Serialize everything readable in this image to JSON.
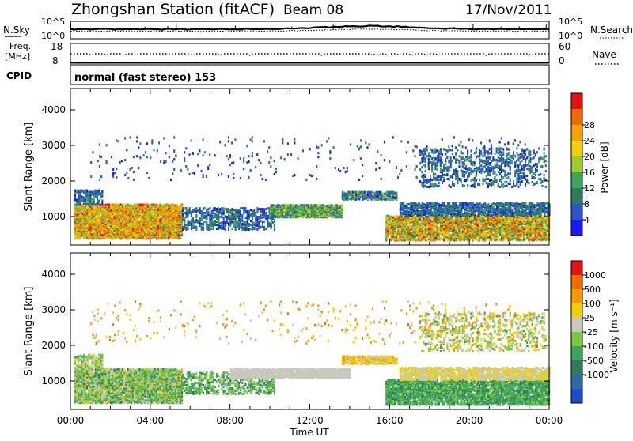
{
  "header": {
    "station": "Zhongshan Station (fitACF)",
    "beam": "Beam 08",
    "date": "17/Nov/2011"
  },
  "top_panels": {
    "sky_label": "N.Sky",
    "search_label": "N.Search",
    "noise_ticks_left": [
      "10^5",
      "10^0"
    ],
    "noise_ticks_right": [
      "10^5",
      "10^0"
    ],
    "freq_label_line1": "Freq.",
    "freq_label_line2": "[MHz]",
    "freq_ticks": [
      "18",
      "8"
    ],
    "nave_label": "Nave",
    "nave_ticks": [
      "60",
      "0"
    ],
    "cpid_label": "CPID",
    "cpid_text": "normal (fast stereo) 153"
  },
  "chart_data": [
    {
      "type": "heatmap",
      "name": "Power",
      "xlabel": "Time UT",
      "ylabel": "Slant Range [km]",
      "x_ticks": [
        "00:00",
        "04:00",
        "08:00",
        "12:00",
        "16:00",
        "20:00",
        "00:00"
      ],
      "y_ticks": [
        1000,
        2000,
        3000,
        4000
      ],
      "ylim": [
        200,
        4600
      ],
      "colorbar": {
        "label": "Power [dB]",
        "ticks": [
          "4",
          "8",
          "12",
          "16",
          "20",
          "24",
          "28"
        ],
        "colors": [
          "#1a1aff",
          "#2a56c8",
          "#2e7d5a",
          "#3ca65a",
          "#9ccc2a",
          "#f0d000",
          "#f5a100",
          "#f06a00",
          "#e81010"
        ]
      },
      "bands": [
        {
          "t0": 0.2,
          "t1": 5.6,
          "r0": 350,
          "r1": 1300,
          "density": 0.75,
          "levels": [
            3,
            8
          ]
        },
        {
          "t0": 0.2,
          "t1": 1.6,
          "r0": 1300,
          "r1": 1700,
          "density": 0.45,
          "levels": [
            0,
            3
          ]
        },
        {
          "t0": 5.6,
          "t1": 10.2,
          "r0": 600,
          "r1": 1200,
          "density": 0.35,
          "levels": [
            0,
            3
          ]
        },
        {
          "t0": 10.0,
          "t1": 13.6,
          "r0": 950,
          "r1": 1300,
          "density": 0.8,
          "levels": [
            1,
            5
          ]
        },
        {
          "t0": 13.6,
          "t1": 16.4,
          "r0": 1450,
          "r1": 1650,
          "density": 0.7,
          "levels": [
            0,
            4
          ]
        },
        {
          "t0": 15.8,
          "t1": 24.0,
          "r0": 300,
          "r1": 1000,
          "density": 0.6,
          "levels": [
            2,
            8
          ]
        },
        {
          "t0": 16.5,
          "t1": 24.0,
          "r0": 1000,
          "r1": 1350,
          "density": 0.6,
          "levels": [
            0,
            3
          ]
        },
        {
          "t0": 17.5,
          "t1": 23.8,
          "r0": 1800,
          "r1": 2900,
          "density": 0.18,
          "levels": [
            0,
            3
          ]
        },
        {
          "t0": 1.0,
          "t1": 23.0,
          "r0": 2000,
          "r1": 3200,
          "density": 0.02,
          "levels": [
            0,
            2
          ]
        }
      ]
    },
    {
      "type": "heatmap",
      "name": "Velocity",
      "xlabel": "Time UT",
      "ylabel": "Slant Range [km]",
      "x_ticks": [
        "00:00",
        "04:00",
        "08:00",
        "12:00",
        "16:00",
        "20:00",
        "00:00"
      ],
      "y_ticks": [
        1000,
        2000,
        3000,
        4000
      ],
      "ylim": [
        200,
        4600
      ],
      "colorbar": {
        "label": "Velocity [m s⁻¹]",
        "ticks": [
          "1000",
          "500",
          "100",
          "25",
          "-25",
          "-100",
          "-500",
          "-1000"
        ],
        "colors": [
          "#1a4ccc",
          "#2e6aa8",
          "#2e7d5a",
          "#3ca65a",
          "#7ac83c",
          "#c8c8be",
          "#f0d000",
          "#f59a00",
          "#f06a00",
          "#e81010"
        ]
      },
      "bands": [
        {
          "t0": 0.2,
          "t1": 5.6,
          "r0": 350,
          "r1": 1300,
          "density": 0.75,
          "levels": [
            2,
            6
          ]
        },
        {
          "t0": 0.2,
          "t1": 1.6,
          "r0": 1300,
          "r1": 1700,
          "density": 0.45,
          "levels": [
            3,
            6
          ]
        },
        {
          "t0": 5.6,
          "t1": 10.2,
          "r0": 600,
          "r1": 1200,
          "density": 0.35,
          "levels": [
            2,
            5
          ]
        },
        {
          "t0": 8.0,
          "t1": 14.0,
          "r0": 1050,
          "r1": 1300,
          "density": 0.8,
          "levels": [
            5,
            5
          ]
        },
        {
          "t0": 13.6,
          "t1": 16.4,
          "r0": 1450,
          "r1": 1650,
          "density": 0.7,
          "levels": [
            5,
            7
          ]
        },
        {
          "t0": 15.8,
          "t1": 24.0,
          "r0": 300,
          "r1": 1000,
          "density": 0.6,
          "levels": [
            2,
            4
          ]
        },
        {
          "t0": 16.5,
          "t1": 24.0,
          "r0": 1000,
          "r1": 1350,
          "density": 0.6,
          "levels": [
            5,
            6
          ]
        },
        {
          "t0": 17.5,
          "t1": 23.8,
          "r0": 1800,
          "r1": 2900,
          "density": 0.18,
          "levels": [
            3,
            7
          ]
        },
        {
          "t0": 1.0,
          "t1": 23.0,
          "r0": 2000,
          "r1": 3200,
          "density": 0.02,
          "levels": [
            5,
            8
          ]
        }
      ]
    }
  ]
}
